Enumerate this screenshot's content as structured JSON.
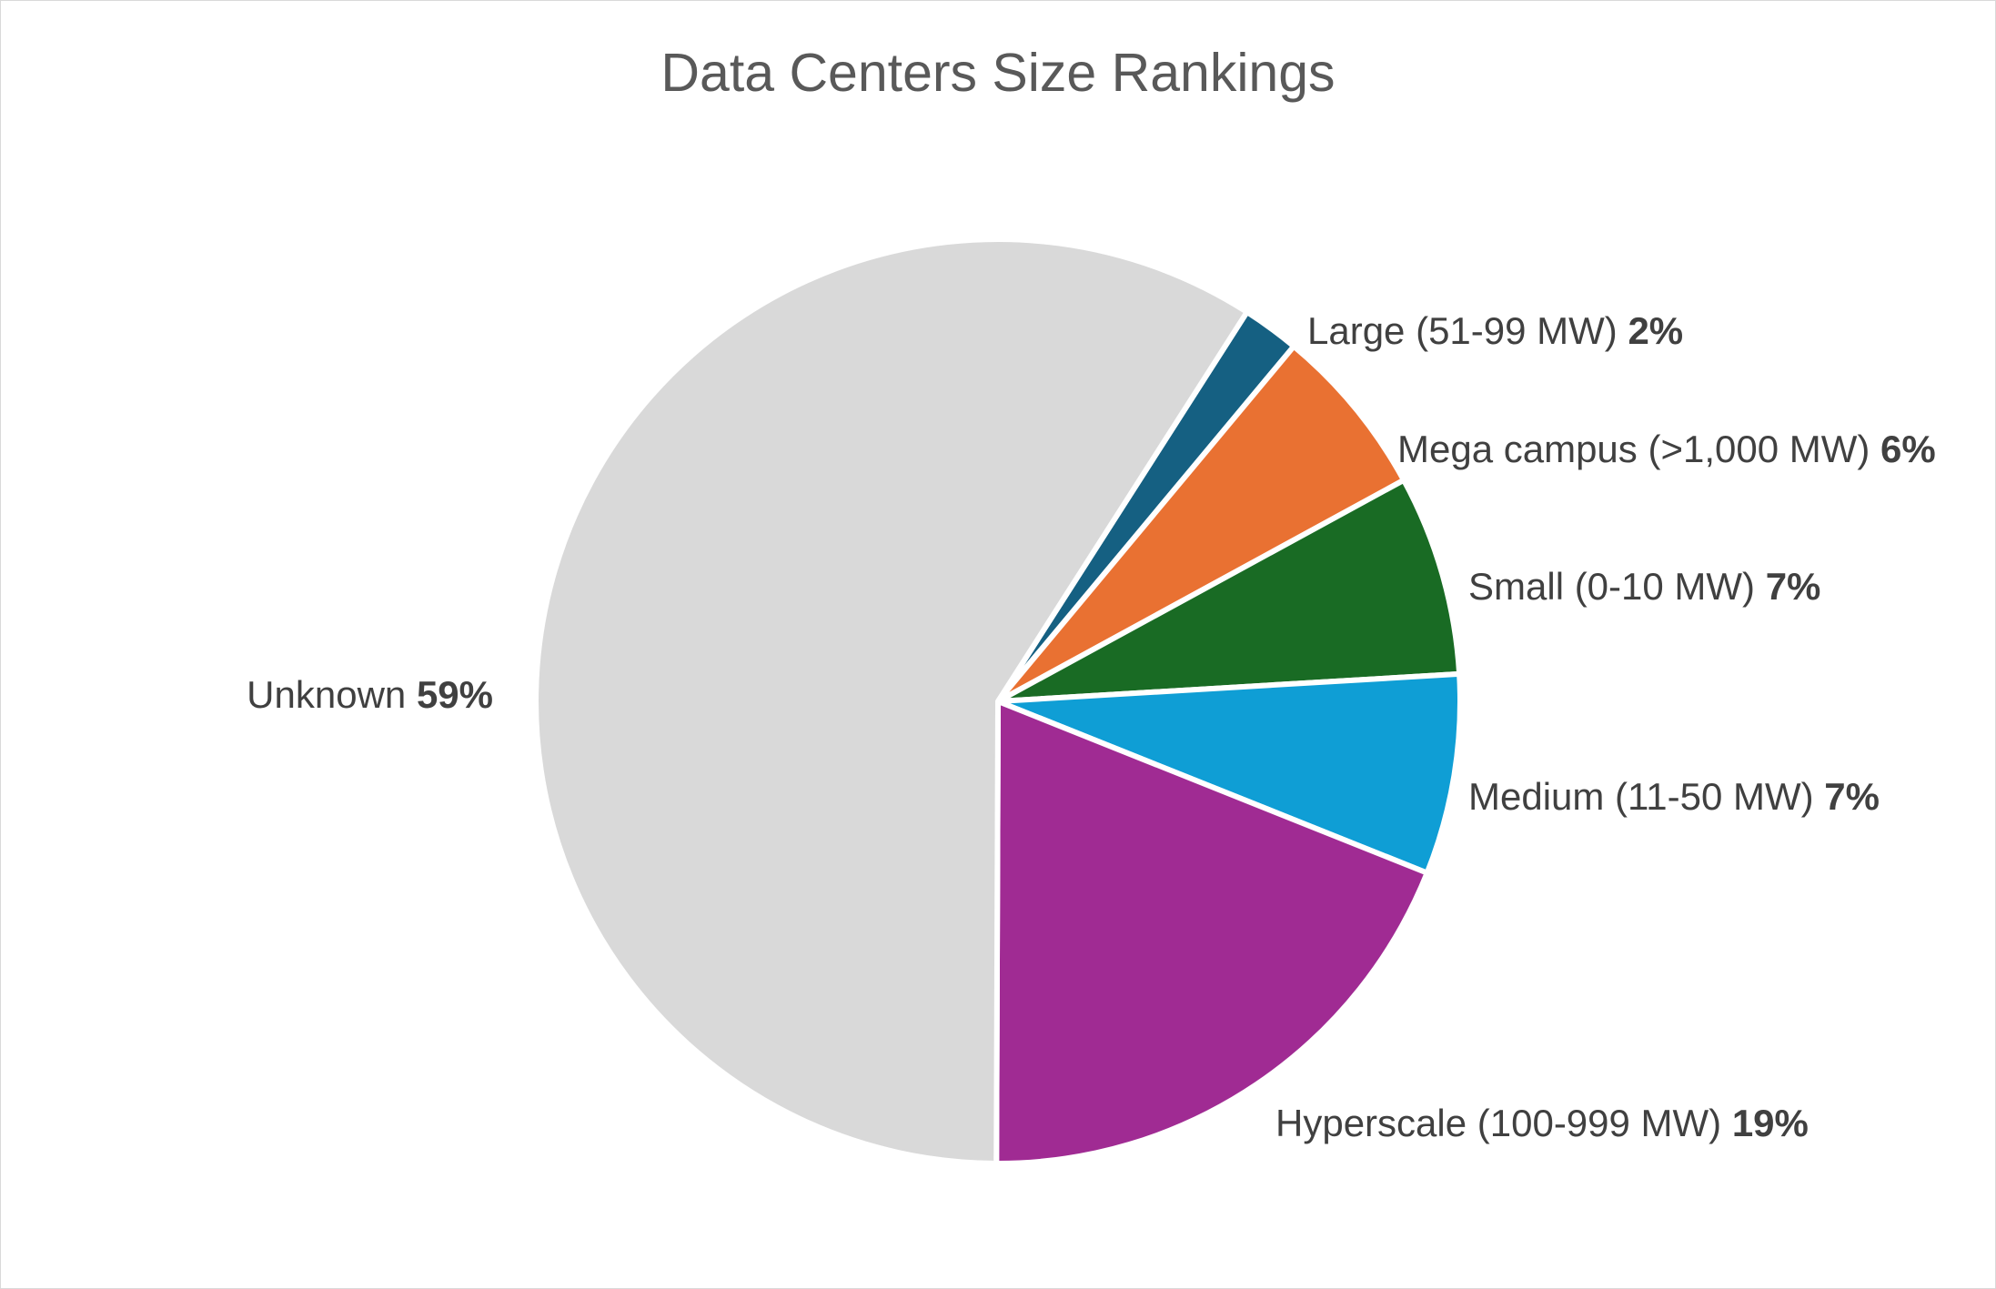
{
  "chart_data": {
    "type": "pie",
    "title": "Data Centers Size Rankings",
    "slices": [
      {
        "label": "Large (51-99 MW)",
        "value": 2,
        "display": "2%",
        "color": "#156082"
      },
      {
        "label": "Mega campus (>1,000 MW)",
        "value": 6,
        "display": "6%",
        "color": "#E97132"
      },
      {
        "label": "Small (0-10 MW)",
        "value": 7,
        "display": "7%",
        "color": "#196B24"
      },
      {
        "label": "Medium (11-50 MW)",
        "value": 7,
        "display": "7%",
        "color": "#0F9ED5"
      },
      {
        "label": "Hyperscale (100-999 MW)",
        "value": 19,
        "display": "19%",
        "color": "#A02B93"
      },
      {
        "label": "Unknown",
        "value": 59,
        "display": "59%",
        "color": "#D9D9D9"
      }
    ],
    "start_angle_deg": 32.6,
    "direction": "clockwise",
    "legend": "none",
    "data_labels": "outside-end, category name with bold percentage"
  }
}
